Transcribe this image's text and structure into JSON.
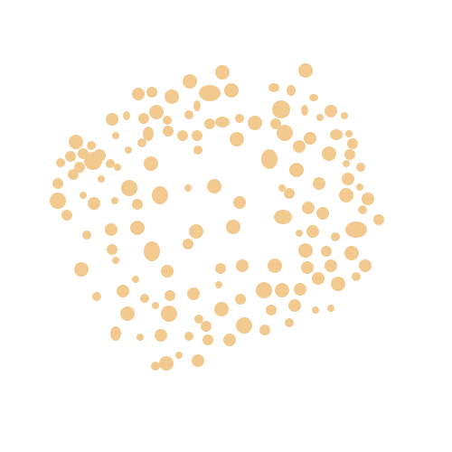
{
  "image": {
    "description_colors": {
      "background": "#ffffff",
      "dot": "#f2c98e"
    }
  }
}
